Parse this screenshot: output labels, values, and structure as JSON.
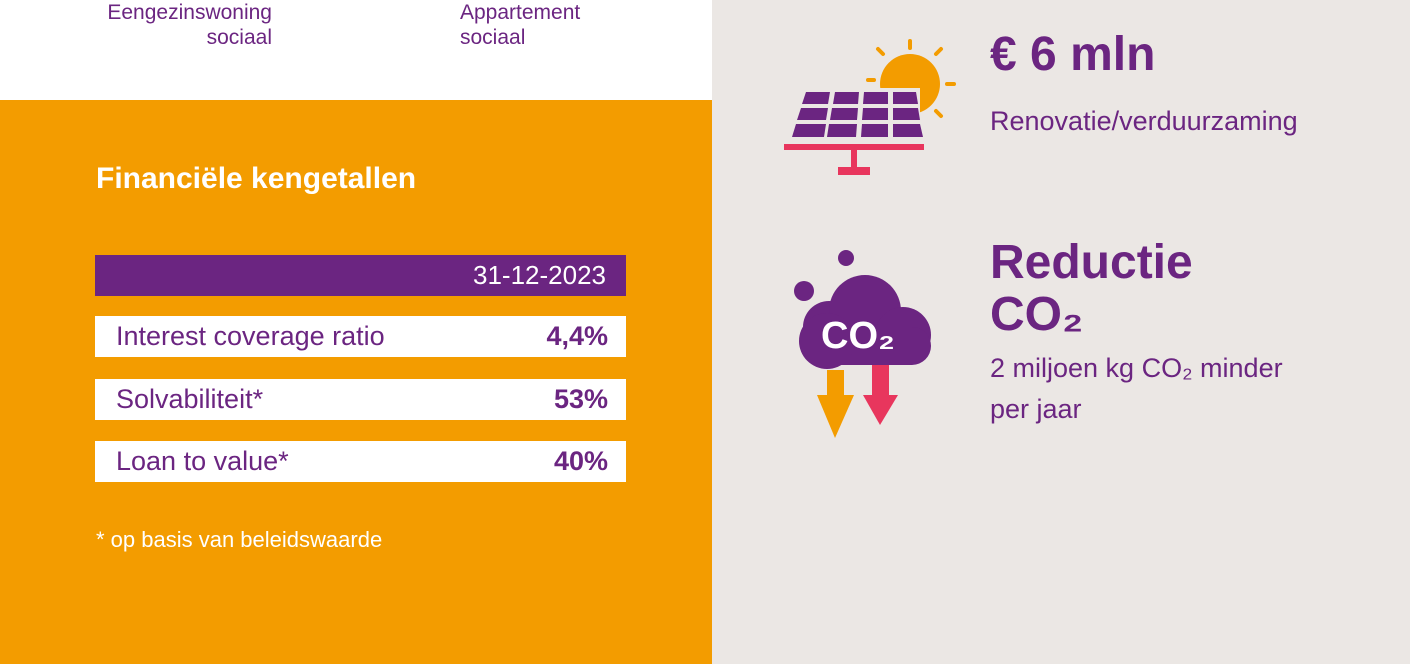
{
  "housing": {
    "col1": {
      "line1": "Eengezinswoning",
      "line2": "sociaal"
    },
    "col2": {
      "line1": "Appartement",
      "line2": "sociaal"
    }
  },
  "financials": {
    "title": "Financiële kengetallen",
    "date_header": "31-12-2023",
    "rows": [
      {
        "label": "Interest coverage ratio",
        "value": "4,4%"
      },
      {
        "label": "Solvabiliteit*",
        "value": "53%"
      },
      {
        "label": "Loan to value*",
        "value": "40%"
      }
    ],
    "footnote": "* op basis van beleidswaarde"
  },
  "renovation": {
    "icon": "solar-panel-icon",
    "amount": "€ 6 mln",
    "caption": "Renovatie/verduurzaming"
  },
  "co2": {
    "icon": "co2-cloud-icon",
    "icon_text": "CO₂",
    "title_line1": "Reductie",
    "title_line2": "CO₂",
    "desc_line1": "2 miljoen kg CO₂ minder",
    "desc_line2": "per jaar"
  },
  "colors": {
    "purple": "#6b2581",
    "orange": "#f39c00",
    "pink": "#e8365d",
    "background": "#ebe7e4"
  }
}
